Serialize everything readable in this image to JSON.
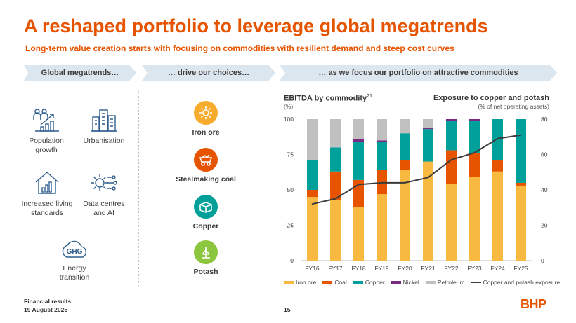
{
  "header": {
    "title": "A reshaped portfolio to leverage global megatrends",
    "subtitle": "Long-term value creation starts with focusing on commodities with resilient demand and steep cost curves"
  },
  "chevrons": [
    "Global megatrends…",
    "… drive our choices…",
    "… as we focus our portfolio on attractive commodities"
  ],
  "megatrends": [
    {
      "label1": "Population",
      "label2": "growth",
      "icon": "population-growth-icon"
    },
    {
      "label1": "Urbanisation",
      "label2": "",
      "icon": "city-buildings-icon"
    },
    {
      "label1": "Increased living",
      "label2": "standards",
      "icon": "house-chart-icon"
    },
    {
      "label1": "Data centres",
      "label2": "and AI",
      "icon": "gear-network-icon"
    },
    {
      "label1": "Energy",
      "label2": "transition",
      "icon": "ghg-icon",
      "icon_text": "GHG"
    }
  ],
  "choices": [
    {
      "label": "Iron ore",
      "color": "#f7ac2e",
      "icon": "gear-iron-ore-icon"
    },
    {
      "label": "Steelmaking coal",
      "color": "#e65400",
      "icon": "coal-truck-icon"
    },
    {
      "label": "Copper",
      "color": "#00a09a",
      "icon": "copper-cathode-icon"
    },
    {
      "label": "Potash",
      "color": "#8cc63f",
      "icon": "potash-plant-icon"
    }
  ],
  "chart_header": {
    "left_title": "EBITDA by commodity",
    "left_sup": "21",
    "left_unit": "(%)",
    "right_title": "Exposure to copper and potash",
    "right_unit": "(% of net operating assets)"
  },
  "chart_data": {
    "type": "bar",
    "stacked": true,
    "categories": [
      "FY16",
      "FY17",
      "FY18",
      "FY19",
      "FY20",
      "FY21",
      "FY22",
      "FY23",
      "FY24",
      "FY25"
    ],
    "ylim": [
      0,
      100
    ],
    "yticks": [
      0,
      25,
      50,
      75,
      100
    ],
    "y2lim": [
      0,
      80
    ],
    "y2ticks": [
      0,
      20,
      40,
      60,
      80
    ],
    "series": [
      {
        "name": "Iron ore",
        "color": "#f7b940",
        "values": [
          45,
          43,
          38,
          47,
          64,
          70,
          54,
          59,
          63,
          53
        ]
      },
      {
        "name": "Coal",
        "color": "#e65400",
        "values": [
          5,
          20,
          19,
          17,
          7,
          0,
          24,
          17,
          8,
          2
        ]
      },
      {
        "name": "Copper",
        "color": "#00a09a",
        "values": [
          21,
          17,
          27,
          20,
          19,
          23,
          21,
          23,
          29,
          45
        ]
      },
      {
        "name": "Nickel",
        "color": "#7b2a83",
        "values": [
          0,
          0,
          2,
          1,
          0,
          1,
          1,
          1,
          0,
          0
        ]
      },
      {
        "name": "Petroleum",
        "color": "#c0c0c0",
        "values": [
          29,
          20,
          14,
          15,
          10,
          6,
          0,
          0,
          0,
          0
        ]
      }
    ],
    "line": {
      "name": "Copper and potash exposure",
      "color": "#3c3c3c",
      "values": [
        32,
        35,
        43,
        44,
        44,
        47,
        57,
        61,
        69,
        71
      ]
    }
  },
  "footer": {
    "line1": "Financial results",
    "line2": "19 August 2025",
    "page": "15",
    "logo": "BHP"
  }
}
